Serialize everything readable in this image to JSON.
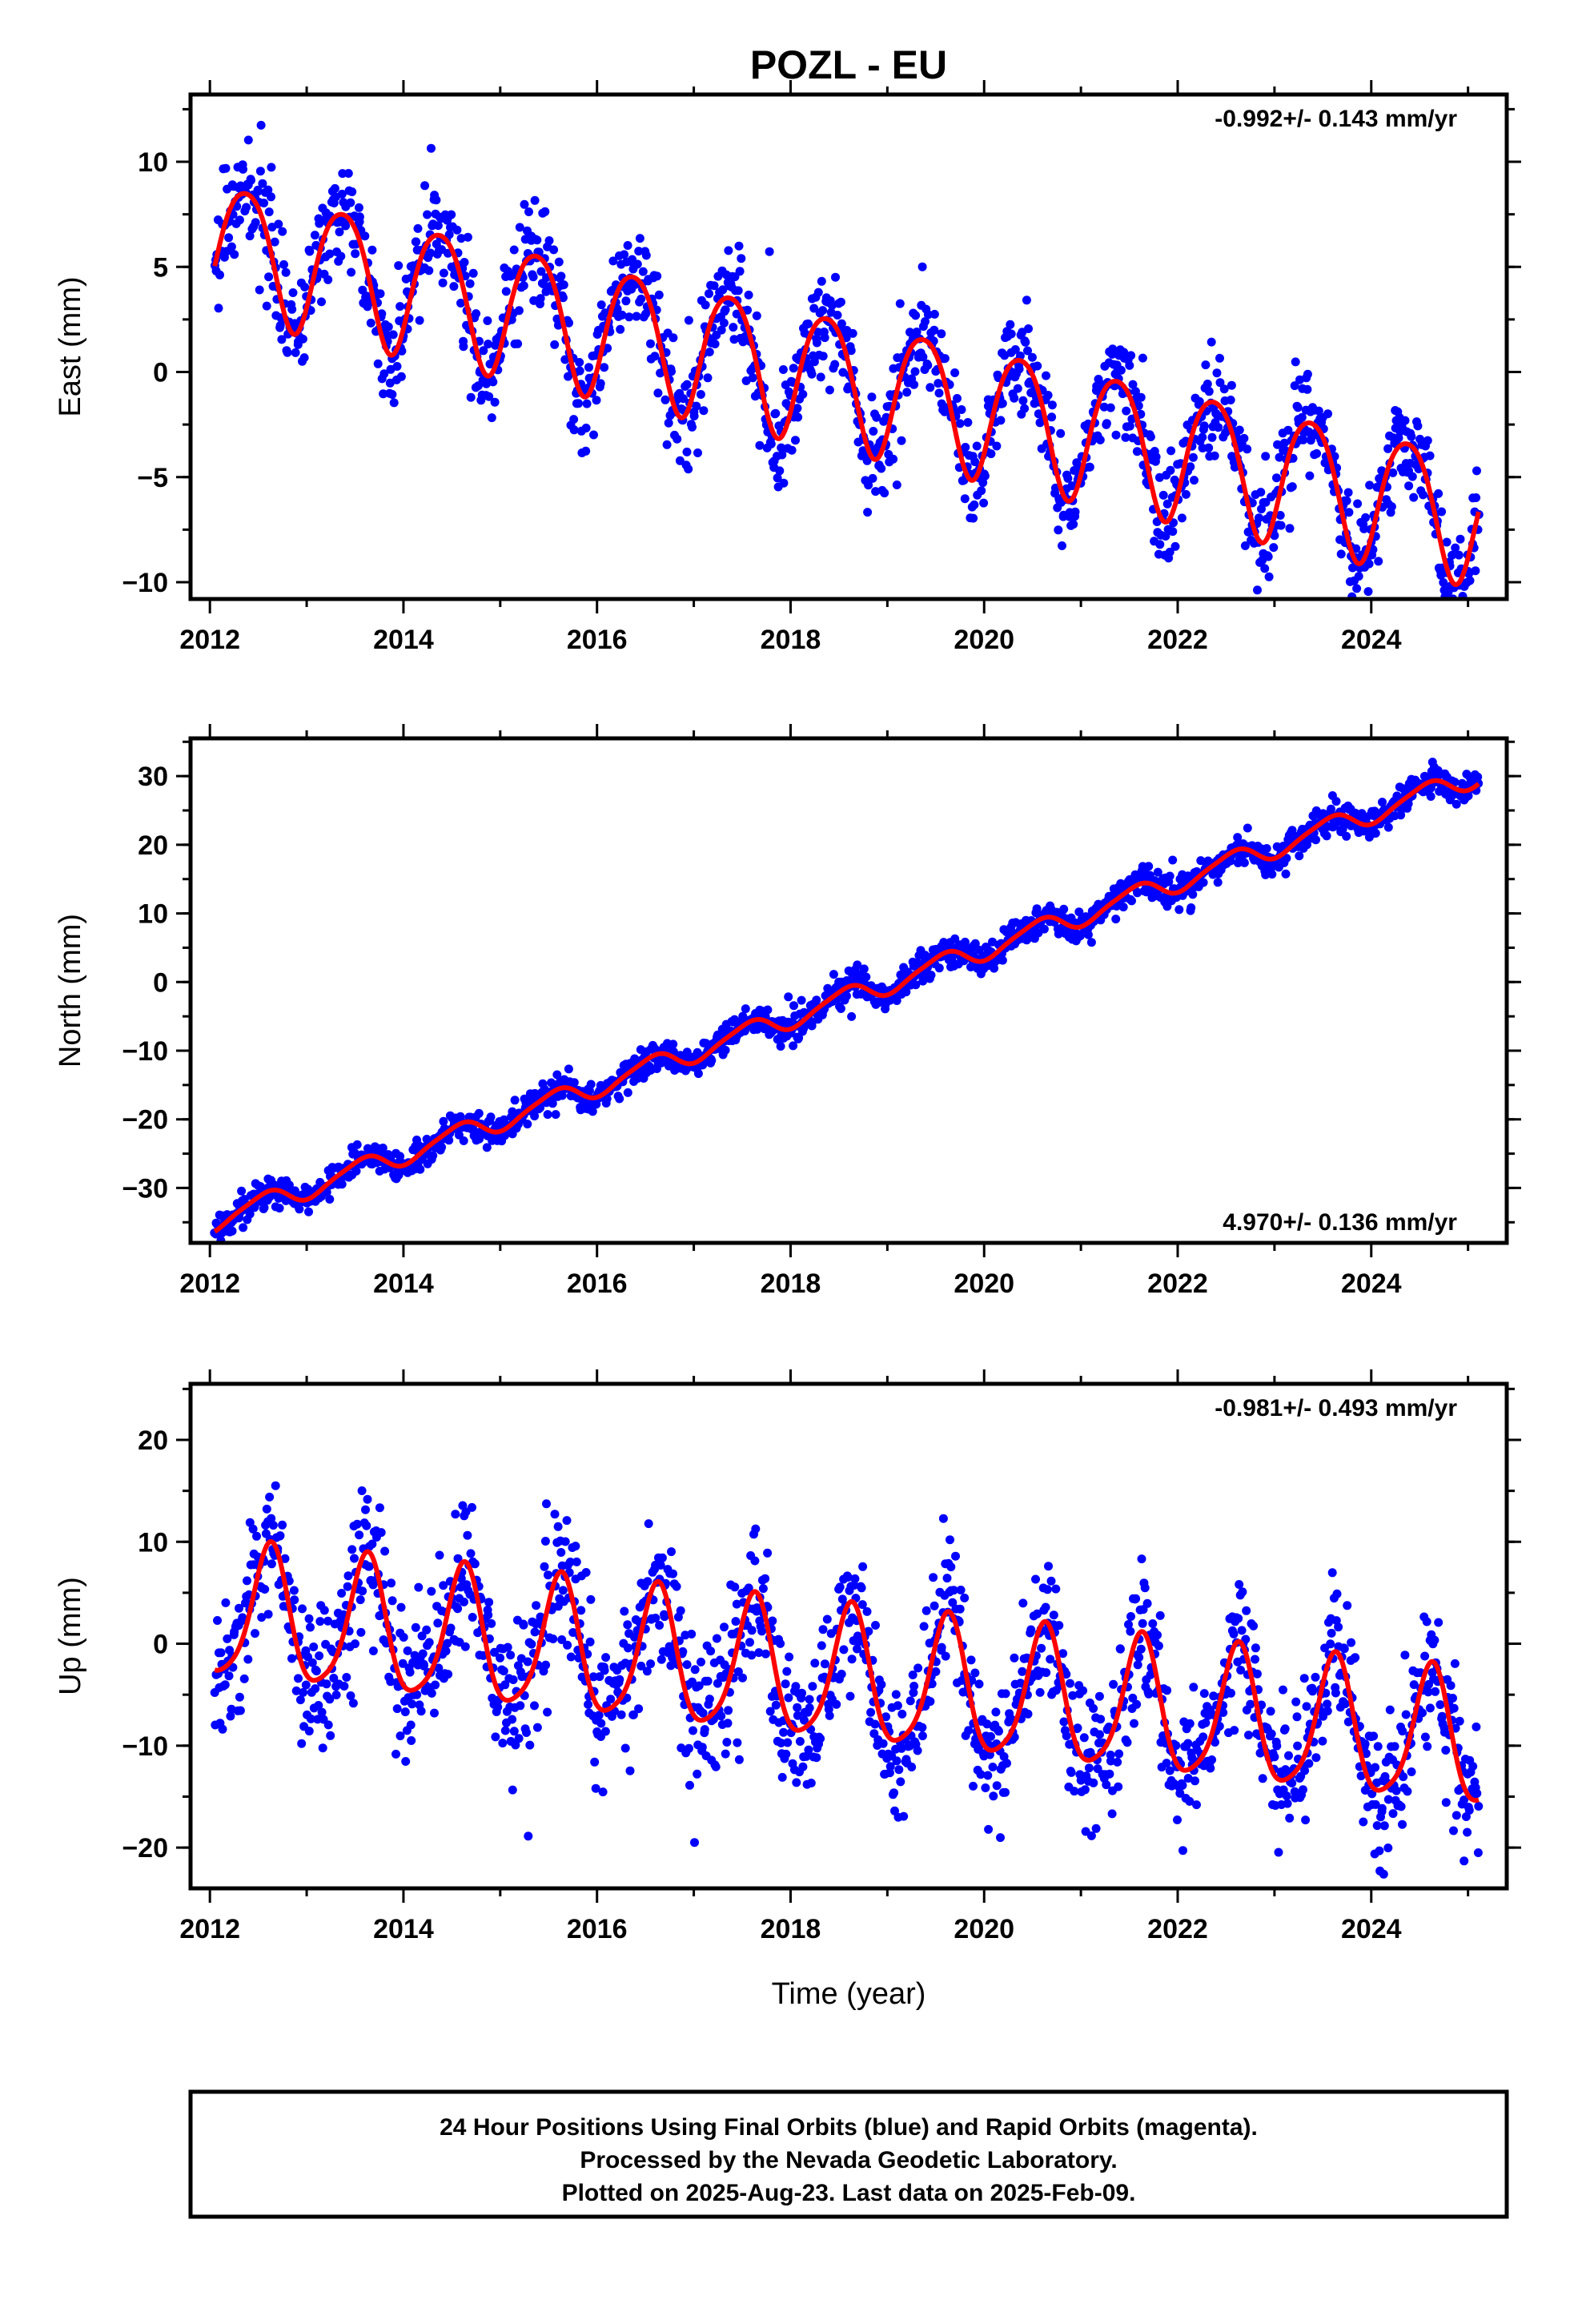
{
  "title": "POZL - EU",
  "colors": {
    "points": "#0000ff",
    "model": "#ff0000",
    "frame": "#000000"
  },
  "xlabel": "Time (year)",
  "xticks": [
    2012,
    2014,
    2016,
    2018,
    2020,
    2022,
    2024
  ],
  "footer": {
    "lines": [
      "24 Hour Positions Using Final Orbits (blue) and Rapid Orbits (magenta).",
      "Processed by the Nevada Geodetic Laboratory.",
      "Plotted on 2025-Aug-23. Last data on 2025-Feb-09."
    ]
  },
  "chart_data": [
    {
      "type": "scatter",
      "ylabel": "East (mm)",
      "rate": "-0.992+/- 0.143 mm/yr",
      "rate_position": "top-right",
      "xlim": [
        2011.8,
        2025.4
      ],
      "ylim": [
        -10.8,
        13.2
      ],
      "yticks": [
        -10,
        -5,
        0,
        5,
        10
      ],
      "series": [
        {
          "kind": "points",
          "x_range": [
            2012.05,
            2025.11
          ],
          "scatter_sd": 1.25
        },
        {
          "kind": "model",
          "model": {
            "t0": 2012.0,
            "offset": 6.15,
            "rate": -0.992,
            "annual_amp": 3.1,
            "annual_peak": 0.37,
            "semiannual_amp": 0.4,
            "semiannual_peak": 0.12
          }
        }
      ]
    },
    {
      "type": "scatter",
      "ylabel": "North (mm)",
      "rate": "4.970+/- 0.136 mm/yr",
      "rate_position": "bottom-right",
      "xlim": [
        2011.8,
        2025.4
      ],
      "ylim": [
        -38,
        35.5
      ],
      "yticks": [
        -30,
        -20,
        -10,
        0,
        10,
        20,
        30
      ],
      "series": [
        {
          "kind": "points",
          "x_range": [
            2012.05,
            2025.11
          ],
          "scatter_sd": 1.1
        },
        {
          "kind": "model",
          "model": {
            "t0": 2012.0,
            "offset": -35.0,
            "rate": 4.97,
            "annual_amp": 1.5,
            "annual_peak": 0.55,
            "semiannual_amp": 0.3,
            "semiannual_peak": 0.2
          }
        }
      ]
    },
    {
      "type": "scatter",
      "ylabel": "Up (mm)",
      "rate": "-0.981+/- 0.493 mm/yr",
      "rate_position": "top-right",
      "xlim": [
        2011.8,
        2025.4
      ],
      "ylim": [
        -24,
        25.5
      ],
      "yticks": [
        -20,
        -10,
        0,
        10,
        20
      ],
      "series": [
        {
          "kind": "points",
          "x_range": [
            2012.05,
            2025.11
          ],
          "scatter_sd": 3.6
        },
        {
          "kind": "model",
          "model": {
            "t0": 2012.0,
            "offset": 3.0,
            "rate": -0.981,
            "annual_amp": 6.5,
            "annual_peak": 0.62,
            "semiannual_amp": 1.2,
            "semiannual_peak": 0.15
          }
        }
      ]
    }
  ]
}
